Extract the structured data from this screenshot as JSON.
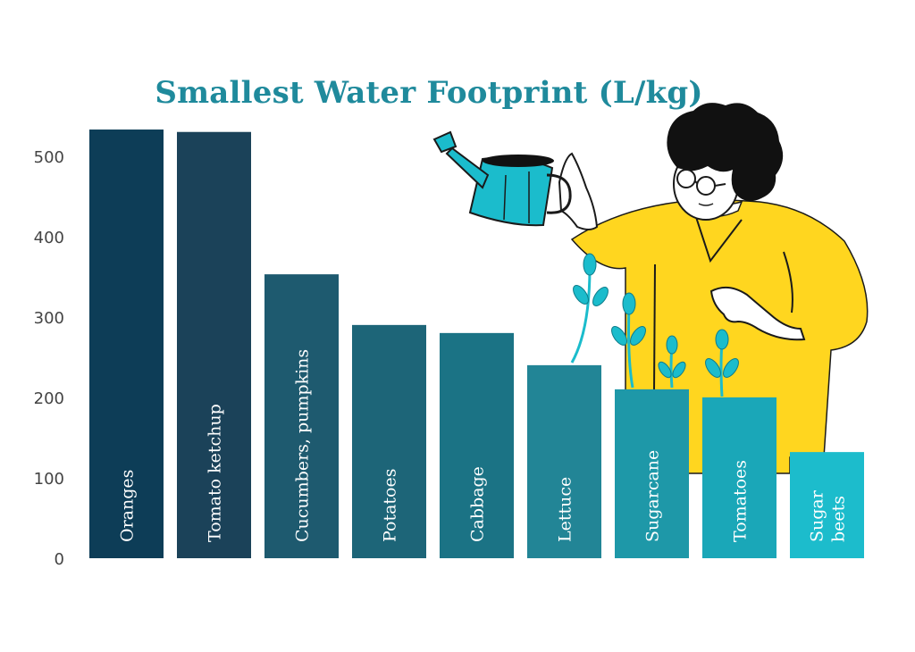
{
  "chart_data": {
    "type": "bar",
    "title": "Smallest Water Footprint (L/kg)",
    "xlabel": "",
    "ylabel": "",
    "ylim": [
      0,
      540
    ],
    "yticks": [
      0,
      100,
      200,
      300,
      400,
      500
    ],
    "grid": false,
    "legend": "none",
    "categories": [
      [
        "Oranges"
      ],
      [
        "Tomato ketchup"
      ],
      [
        "Cucumbers, pumpkins"
      ],
      [
        "Potatoes"
      ],
      [
        "Cabbage"
      ],
      [
        "Lettuce"
      ],
      [
        "Sugarcane"
      ],
      [
        "Tomatoes"
      ],
      [
        "Sugar",
        "beets"
      ]
    ],
    "values": [
      533,
      530,
      353,
      290,
      280,
      240,
      210,
      200,
      132
    ],
    "colors": [
      "#0d3d57",
      "#1b4259",
      "#1e5a6f",
      "#1d6578",
      "#1b7385",
      "#228596",
      "#1e98a8",
      "#1aa7b8",
      "#1cbccc"
    ]
  },
  "illustration": {
    "description_icon": "person-watering-plants",
    "accent_colors": [
      "#ffd61f",
      "#1bbccc",
      "#111111"
    ]
  }
}
